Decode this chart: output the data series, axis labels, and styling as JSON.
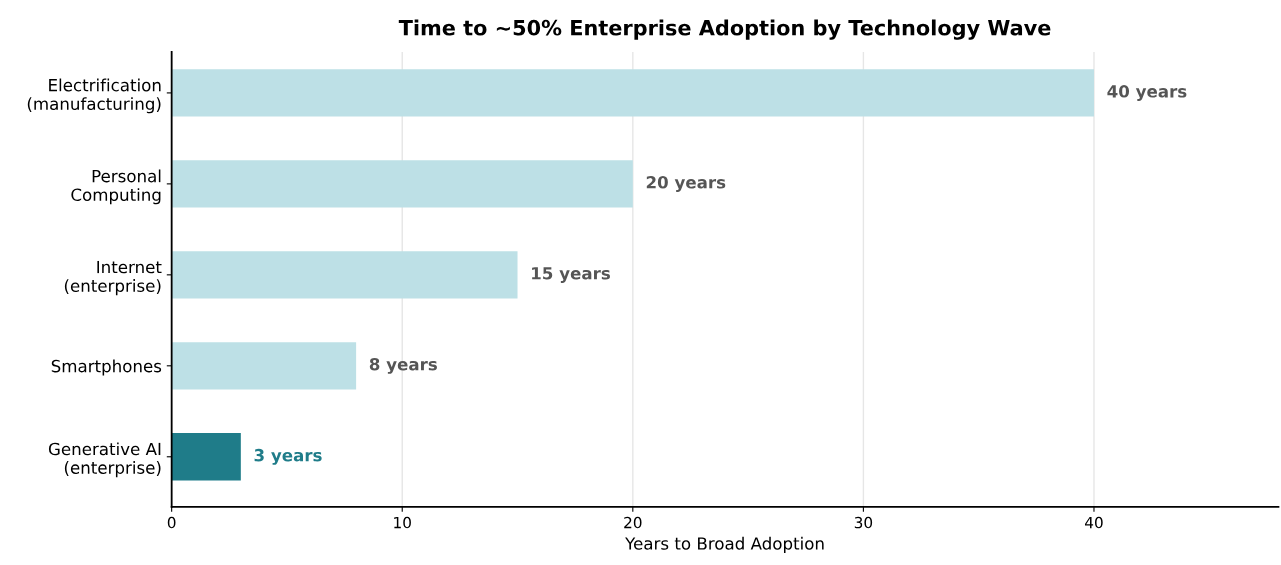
{
  "chart_data": {
    "type": "bar",
    "orientation": "horizontal",
    "title": "Time to ~50% Enterprise Adoption by Technology Wave",
    "xlabel": "Years to Broad Adoption",
    "categories": [
      "Electrification\n(manufacturing)",
      "Personal\nComputing",
      "Internet\n(enterprise)",
      "Smartphones",
      "Generative AI\n(enterprise)"
    ],
    "values": [
      40,
      20,
      15,
      8,
      3
    ],
    "colors": [
      "#bde0e6",
      "#bde0e6",
      "#bde0e6",
      "#bde0e6",
      "#1f7c89"
    ],
    "value_labels": [
      "40 years",
      "20 years",
      "15 years",
      "8 years",
      "3 years"
    ],
    "xlim": [
      0,
      48
    ],
    "xticks": [
      0,
      10,
      20,
      30,
      40
    ],
    "grid": "x",
    "legend": false
  }
}
